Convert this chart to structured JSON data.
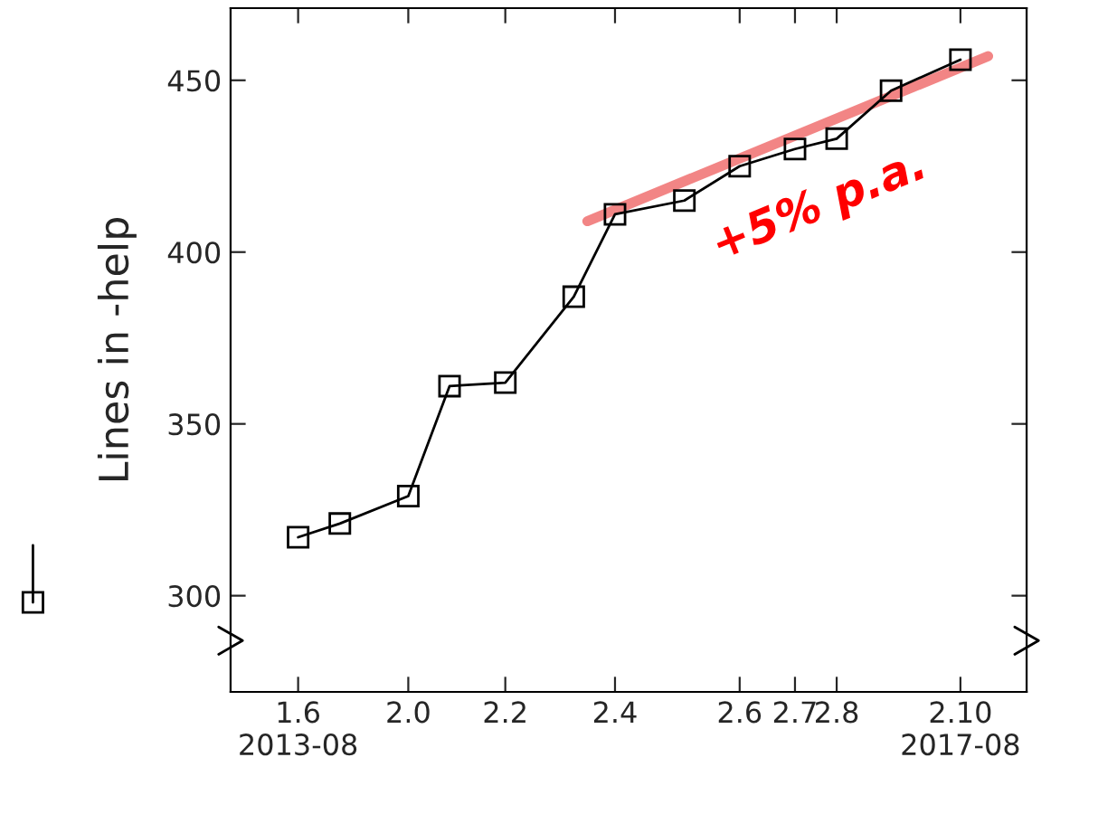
{
  "chart_data": {
    "type": "line",
    "ylabel": "Lines in -help",
    "series": [
      {
        "color": "#000000",
        "marker": "square",
        "x": [
          "2013-08",
          "2013-11",
          "2014-04",
          "2014-07",
          "2014-11",
          "2015-04",
          "2015-07",
          "2015-12",
          "2016-04",
          "2016-08",
          "2016-11",
          "2017-03",
          "2017-08"
        ],
        "values": [
          317,
          321,
          329,
          361,
          362,
          387,
          411,
          415,
          425,
          430,
          433,
          447,
          456
        ]
      },
      {
        "color": "#f07070",
        "marker": "none",
        "x": [
          "2015-05",
          "2017-10"
        ],
        "values": [
          409,
          457
        ]
      }
    ],
    "xlim": [
      "2013-03-05",
      "2017-12-25"
    ],
    "xticks": [
      {
        "value": "2013-08",
        "label": "1.6\n2013-08"
      },
      {
        "value": "2014-04",
        "label": "2.0"
      },
      {
        "value": "2014-11",
        "label": "2.2"
      },
      {
        "value": "2015-07",
        "label": "2.4"
      },
      {
        "value": "2016-04",
        "label": "2.6"
      },
      {
        "value": "2016-08",
        "label": "2.7"
      },
      {
        "value": "2016-11",
        "label": "2.8"
      },
      {
        "value": "2017-08",
        "label": "2.10\n2017-08"
      }
    ],
    "ylim": [
      272,
      471
    ],
    "yticks": [
      300,
      350,
      400,
      450
    ],
    "annotations": [
      "+5% p.a."
    ],
    "grid": false
  }
}
